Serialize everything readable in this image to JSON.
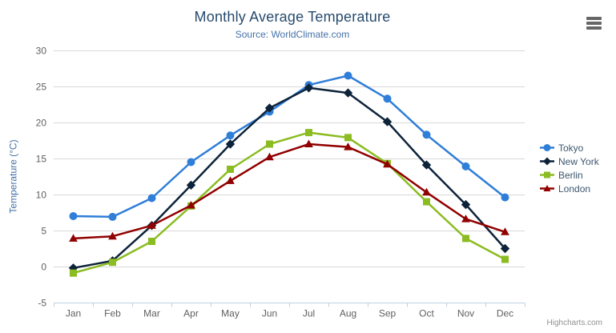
{
  "title": "Monthly Average Temperature",
  "subtitle": "Source: WorldClimate.com",
  "credit": "Highcharts.com",
  "menu_icon": "hamburger-menu",
  "theme": {
    "title_color": "#274b6d",
    "subtitle_color": "#4572a7",
    "axis_title_color": "#4572a7",
    "axis_label_color": "#606060",
    "grid_color": "#d8d8d8",
    "axis_line_color": "#c0d0e0",
    "legend_text_color": "#3e576f",
    "credit_color": "#909090",
    "background": "#ffffff"
  },
  "chart_data": {
    "type": "line",
    "title": "Monthly Average Temperature",
    "subtitle": "Source: WorldClimate.com",
    "categories": [
      "Jan",
      "Feb",
      "Mar",
      "Apr",
      "May",
      "Jun",
      "Jul",
      "Aug",
      "Sep",
      "Oct",
      "Nov",
      "Dec"
    ],
    "series": [
      {
        "name": "Tokyo",
        "color": "#2f7ed8",
        "marker": "circle",
        "values": [
          7.0,
          6.9,
          9.5,
          14.5,
          18.2,
          21.5,
          25.2,
          26.5,
          23.3,
          18.3,
          13.9,
          9.6
        ]
      },
      {
        "name": "New York",
        "color": "#0d233a",
        "marker": "diamond",
        "values": [
          -0.2,
          0.8,
          5.7,
          11.3,
          17.0,
          22.0,
          24.8,
          24.1,
          20.1,
          14.1,
          8.6,
          2.5
        ]
      },
      {
        "name": "Berlin",
        "color": "#8bbc21",
        "marker": "square",
        "values": [
          -0.9,
          0.6,
          3.5,
          8.4,
          13.5,
          17.0,
          18.6,
          17.9,
          14.3,
          9.0,
          3.9,
          1.0
        ]
      },
      {
        "name": "London",
        "color": "#910000",
        "marker": "triangle",
        "values": [
          3.9,
          4.2,
          5.7,
          8.5,
          11.9,
          15.2,
          17.0,
          16.6,
          14.2,
          10.3,
          6.6,
          4.8
        ]
      }
    ],
    "xlabel": "",
    "ylabel": "Temperature (°C)",
    "ylim": [
      -5,
      30
    ],
    "yticks": [
      -5,
      0,
      5,
      10,
      15,
      20,
      25,
      30
    ],
    "grid": true,
    "legend_position": "right"
  }
}
